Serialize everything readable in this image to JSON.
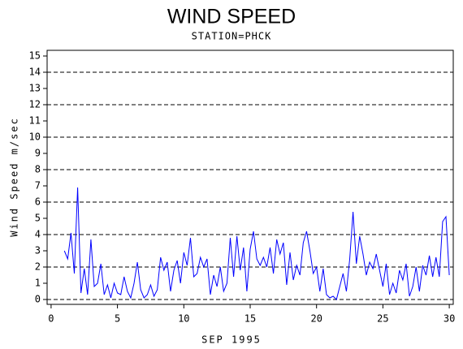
{
  "chart_data": {
    "type": "line",
    "title": "WIND SPEED",
    "subtitle": "STATION=PHCK",
    "x_label": "SEP 1995",
    "y_label": "Wind Speed m/sec",
    "x": [
      1,
      1.25,
      1.5,
      1.75,
      2,
      2.25,
      2.5,
      2.75,
      3,
      3.25,
      3.5,
      3.75,
      4,
      4.25,
      4.5,
      4.75,
      5,
      5.25,
      5.5,
      5.75,
      6,
      6.25,
      6.5,
      6.75,
      7,
      7.25,
      7.5,
      7.75,
      8,
      8.25,
      8.5,
      8.75,
      9,
      9.25,
      9.5,
      9.75,
      10,
      10.25,
      10.5,
      10.75,
      11,
      11.25,
      11.5,
      11.75,
      12,
      12.25,
      12.5,
      12.75,
      13,
      13.25,
      13.5,
      13.75,
      14,
      14.25,
      14.5,
      14.75,
      15,
      15.25,
      15.5,
      15.75,
      16,
      16.25,
      16.5,
      16.75,
      17,
      17.25,
      17.5,
      17.75,
      18,
      18.25,
      18.5,
      18.75,
      19,
      19.25,
      19.5,
      19.75,
      20,
      20.25,
      20.5,
      20.75,
      21,
      21.25,
      21.5,
      21.75,
      22,
      22.25,
      22.5,
      22.75,
      23,
      23.25,
      23.5,
      23.75,
      24,
      24.25,
      24.5,
      24.75,
      25,
      25.25,
      25.5,
      25.75,
      26,
      26.25,
      26.5,
      26.75,
      27,
      27.25,
      27.5,
      27.75,
      28,
      28.25,
      28.5,
      28.75,
      29,
      29.25,
      29.5,
      29.75,
      30
    ],
    "series": [
      {
        "name": "Wind Speed",
        "color": "#0000ff",
        "values": [
          3.0,
          2.5,
          4.1,
          1.6,
          6.9,
          0.4,
          1.9,
          0.3,
          3.7,
          0.8,
          1.0,
          2.2,
          0.3,
          0.9,
          0.1,
          1.0,
          0.4,
          0.3,
          1.4,
          0.5,
          0.1,
          1.0,
          2.3,
          0.6,
          0.1,
          0.3,
          0.9,
          0.2,
          0.6,
          2.6,
          1.8,
          2.3,
          0.5,
          1.8,
          2.4,
          1.0,
          2.9,
          2.1,
          3.8,
          1.4,
          1.6,
          2.6,
          2.0,
          2.5,
          0.3,
          1.5,
          0.8,
          2.0,
          0.5,
          1.0,
          3.8,
          1.4,
          3.9,
          1.8,
          3.2,
          0.5,
          3.1,
          4.2,
          2.5,
          2.1,
          2.6,
          2.0,
          3.2,
          1.6,
          3.7,
          2.8,
          3.5,
          0.9,
          2.9,
          1.2,
          2.1,
          1.5,
          3.5,
          4.2,
          3.0,
          1.6,
          2.0,
          0.5,
          1.9,
          0.3,
          0.1,
          0.2,
          0.0,
          0.8,
          1.6,
          0.5,
          2.5,
          5.4,
          2.2,
          3.9,
          2.8,
          1.5,
          2.3,
          1.9,
          2.8,
          1.8,
          0.8,
          2.2,
          0.3,
          1.0,
          0.4,
          1.8,
          1.2,
          2.2,
          0.2,
          0.8,
          2.0,
          0.5,
          2.1,
          1.5,
          2.7,
          1.4,
          2.6,
          1.4,
          4.8,
          5.1,
          1.5
        ]
      }
    ],
    "xlim": [
      -0.3,
      30.3
    ],
    "xticks": [
      0,
      5,
      10,
      15,
      20,
      25,
      30
    ],
    "ylim": [
      -0.3,
      15.35
    ],
    "yticks": [
      0,
      1,
      2,
      3,
      4,
      5,
      6,
      7,
      8,
      9,
      10,
      11,
      12,
      13,
      14,
      15
    ],
    "grid": true
  }
}
